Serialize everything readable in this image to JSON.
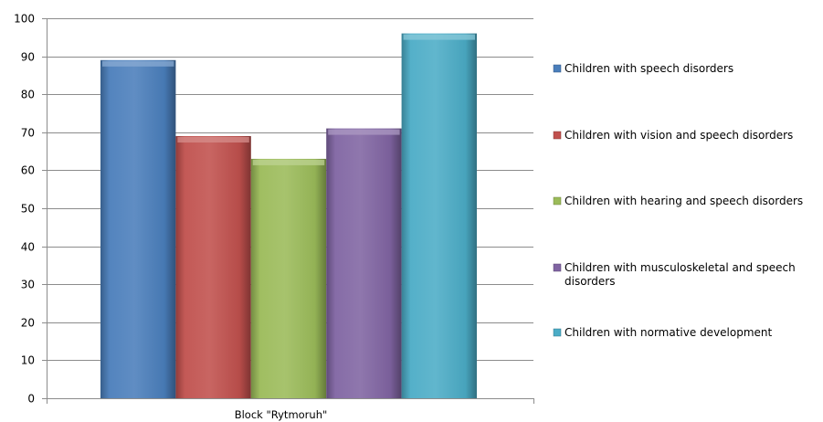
{
  "chart_data": {
    "type": "bar",
    "categories": [
      "Block \"Rytmoruh\""
    ],
    "series": [
      {
        "name": "Children with speech disorders",
        "values": [
          89
        ],
        "color": "#4A7EBB"
      },
      {
        "name": "Children with  vision and speech disorders",
        "values": [
          69
        ],
        "color": "#C0504D"
      },
      {
        "name": "Children with hearing and speech disorders",
        "values": [
          63
        ],
        "color": "#9BBB59"
      },
      {
        "name": "Children with musculoskeletal  and speech disorders",
        "values": [
          71
        ],
        "color": "#8064A2"
      },
      {
        "name": "Children with normative development",
        "values": [
          96
        ],
        "color": "#4BACC6"
      }
    ],
    "ylim": [
      0,
      100
    ],
    "yticks": [
      "0",
      "10",
      "20",
      "30",
      "40",
      "50",
      "60",
      "70",
      "80",
      "90",
      "100"
    ],
    "title": "",
    "xlabel": "",
    "ylabel": "",
    "grid": true,
    "legend": "right"
  }
}
